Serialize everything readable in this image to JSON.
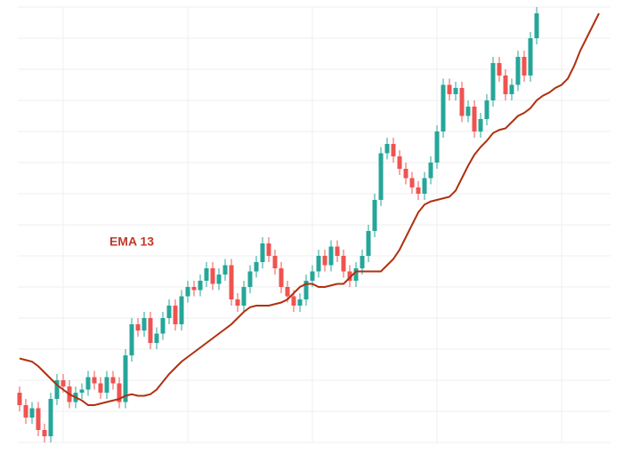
{
  "chart_data": {
    "type": "candlestick",
    "categories": [
      null,
      null,
      null,
      null,
      null,
      null,
      null,
      null,
      null,
      null,
      null,
      null,
      null,
      null,
      null,
      null,
      null,
      null,
      null,
      null,
      null,
      null,
      null,
      null,
      null,
      null,
      null,
      null,
      null,
      null,
      null,
      null,
      null,
      null,
      null,
      null,
      null,
      null,
      null,
      null,
      null,
      null,
      null,
      null,
      null,
      null,
      null,
      null,
      null,
      null,
      null,
      null,
      null,
      null,
      null,
      null,
      null,
      null,
      null,
      null,
      null,
      null,
      null,
      null,
      null,
      null,
      null,
      null,
      null,
      null,
      null,
      null,
      null,
      null,
      null,
      null,
      null,
      null,
      null,
      null,
      null,
      null,
      null,
      null,
      null,
      null,
      null,
      null,
      null,
      null,
      null,
      null,
      null,
      null
    ],
    "open": [
      16,
      12,
      8,
      11,
      4,
      2,
      14,
      20,
      18,
      13,
      16,
      17,
      21,
      19,
      16,
      21,
      19,
      13,
      28,
      38,
      36,
      40,
      32,
      35,
      40,
      44,
      38,
      47,
      50,
      49,
      52,
      56,
      51,
      54,
      57,
      46,
      44,
      50,
      55,
      58,
      64,
      60,
      56,
      50,
      47,
      44,
      46,
      52,
      55,
      60,
      57,
      63,
      60,
      55,
      52,
      56,
      60,
      68,
      78,
      93,
      96,
      92,
      88,
      85,
      82,
      80,
      85,
      90,
      100,
      115,
      112,
      114,
      105,
      108,
      100,
      104,
      110,
      122,
      118,
      112,
      115,
      124,
      118,
      130,
      null,
      null,
      null,
      null,
      null,
      null,
      null,
      null,
      null,
      null
    ],
    "high": [
      18,
      14,
      13,
      13,
      6,
      16,
      22,
      22,
      20,
      18,
      19,
      23,
      23,
      21,
      23,
      23,
      21,
      30,
      40,
      40,
      42,
      42,
      37,
      42,
      46,
      46,
      49,
      52,
      52,
      54,
      58,
      58,
      56,
      59,
      59,
      48,
      52,
      57,
      60,
      66,
      66,
      62,
      58,
      52,
      49,
      48,
      54,
      57,
      62,
      62,
      65,
      65,
      62,
      57,
      58,
      62,
      70,
      80,
      95,
      98,
      98,
      94,
      90,
      87,
      84,
      87,
      92,
      102,
      117,
      117,
      116,
      116,
      110,
      110,
      106,
      112,
      124,
      124,
      120,
      117,
      126,
      126,
      132,
      140,
      null,
      null,
      null,
      null,
      null,
      null,
      null,
      null,
      null,
      null
    ],
    "low": [
      10,
      6,
      6,
      2,
      0,
      0,
      12,
      16,
      11,
      11,
      14,
      15,
      17,
      14,
      14,
      17,
      11,
      11,
      26,
      34,
      34,
      30,
      30,
      33,
      38,
      36,
      36,
      45,
      47,
      47,
      50,
      49,
      49,
      52,
      44,
      42,
      42,
      48,
      53,
      56,
      58,
      54,
      48,
      45,
      42,
      42,
      44,
      50,
      53,
      55,
      55,
      58,
      53,
      50,
      50,
      54,
      58,
      66,
      76,
      91,
      90,
      86,
      83,
      80,
      78,
      78,
      83,
      88,
      98,
      110,
      110,
      103,
      103,
      98,
      98,
      102,
      108,
      116,
      110,
      110,
      113,
      116,
      116,
      128,
      null,
      null,
      null,
      null,
      null,
      null,
      null,
      null,
      null,
      null
    ],
    "close": [
      12,
      8,
      11,
      4,
      2,
      14,
      20,
      18,
      13,
      16,
      17,
      21,
      19,
      16,
      21,
      19,
      13,
      28,
      38,
      36,
      40,
      32,
      35,
      40,
      44,
      38,
      47,
      50,
      49,
      52,
      56,
      51,
      54,
      57,
      46,
      44,
      50,
      55,
      58,
      64,
      60,
      56,
      50,
      47,
      44,
      46,
      52,
      55,
      60,
      57,
      63,
      60,
      55,
      52,
      56,
      60,
      68,
      78,
      93,
      96,
      92,
      88,
      85,
      82,
      80,
      85,
      90,
      100,
      115,
      112,
      114,
      105,
      108,
      100,
      104,
      110,
      122,
      118,
      112,
      115,
      124,
      118,
      130,
      138,
      null,
      null,
      null,
      null,
      null,
      null,
      null,
      null,
      null,
      null
    ],
    "up_color": "#26a69a",
    "down_color": "#ef5350",
    "ema": {
      "name": "EMA 13",
      "color": "#b0300f",
      "values": [
        27,
        26.5,
        26,
        24.5,
        22.5,
        20.5,
        18.5,
        17,
        15.5,
        14.5,
        13.5,
        12,
        12,
        12.5,
        13,
        13.5,
        14,
        15,
        15.5,
        15,
        15,
        15.5,
        17,
        19.5,
        22,
        24,
        26,
        27.5,
        29,
        30.5,
        32,
        33.5,
        35,
        36.5,
        38,
        40,
        42,
        43.5,
        44,
        44,
        44,
        44.5,
        45,
        46,
        48,
        50,
        51,
        51,
        50,
        50,
        50.5,
        51,
        51,
        53,
        55,
        55,
        55,
        55,
        55,
        57,
        59,
        62,
        66,
        70,
        74,
        76.5,
        77.5,
        78,
        78.5,
        79,
        81,
        85,
        89,
        92.5,
        95,
        97,
        99.5,
        100.5,
        101,
        103,
        105,
        106,
        107.5,
        110,
        111.5,
        112.5,
        114,
        115,
        117,
        121,
        126,
        130,
        134,
        138
      ]
    },
    "ylim": [
      0,
      140
    ],
    "yticks": [
      0,
      10,
      20,
      30,
      40,
      50,
      60,
      70,
      80,
      90,
      100,
      110,
      120,
      130,
      140
    ],
    "xticks": [
      7,
      27,
      47,
      67,
      87
    ],
    "grid": true
  }
}
